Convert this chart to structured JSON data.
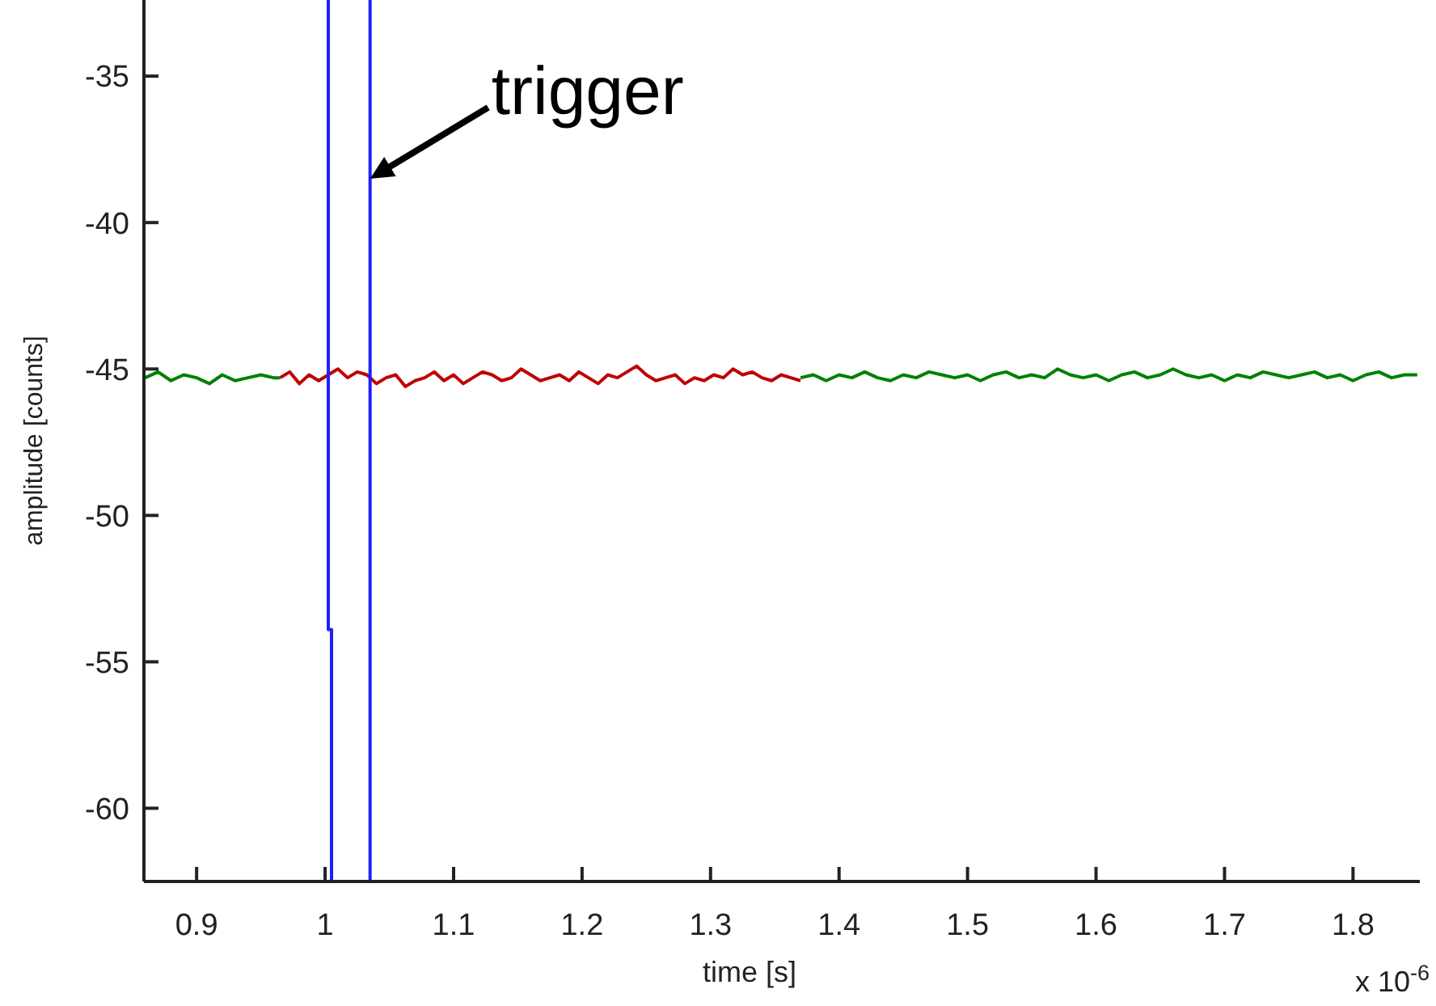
{
  "chart_data": {
    "type": "line",
    "xlabel": "time [s]",
    "ylabel": "amplitude [counts]",
    "xlim": [
      0.859,
      1.852
    ],
    "xticks": [
      0.9,
      1,
      1.1,
      1.2,
      1.3,
      1.4,
      1.5,
      1.6,
      1.7,
      1.8
    ],
    "ylim": [
      -62.5,
      -32.4
    ],
    "yticks": [
      -60,
      -55,
      -50,
      -45,
      -40,
      -35
    ],
    "grid": false,
    "marker": "none",
    "line_style": "solid",
    "annotations": [
      {
        "text": "trigger",
        "x": 1.035,
        "y": -38.5
      },
      "x 10$^{-6}$"
    ],
    "series": [
      {
        "color": "#008000",
        "x": [
          0.86,
          0.87,
          0.88,
          0.89,
          0.9,
          0.91,
          0.92,
          0.93,
          0.94,
          0.95,
          0.96,
          0.965
        ],
        "values": [
          -45.3,
          -45.1,
          -45.4,
          -45.2,
          -45.3,
          -45.5,
          -45.2,
          -45.4,
          -45.3,
          -45.2,
          -45.3,
          -45.3
        ]
      },
      {
        "color": "#008000",
        "x": [
          1.37,
          1.38,
          1.39,
          1.4,
          1.41,
          1.42,
          1.43,
          1.44,
          1.45,
          1.46,
          1.47,
          1.48,
          1.49,
          1.5,
          1.51,
          1.52,
          1.53,
          1.54,
          1.55,
          1.56,
          1.57,
          1.58,
          1.59,
          1.6,
          1.61,
          1.62,
          1.63,
          1.64,
          1.65,
          1.66,
          1.67,
          1.68,
          1.69,
          1.7,
          1.71,
          1.72,
          1.73,
          1.74,
          1.75,
          1.76,
          1.77,
          1.78,
          1.79,
          1.8,
          1.81,
          1.82,
          1.83,
          1.84,
          1.85
        ],
        "values": [
          -45.3,
          -45.2,
          -45.4,
          -45.2,
          -45.3,
          -45.1,
          -45.3,
          -45.4,
          -45.2,
          -45.3,
          -45.1,
          -45.2,
          -45.3,
          -45.2,
          -45.4,
          -45.2,
          -45.1,
          -45.3,
          -45.2,
          -45.3,
          -45.0,
          -45.2,
          -45.3,
          -45.2,
          -45.4,
          -45.2,
          -45.1,
          -45.3,
          -45.2,
          -45.0,
          -45.2,
          -45.3,
          -45.2,
          -45.4,
          -45.2,
          -45.3,
          -45.1,
          -45.2,
          -45.3,
          -45.2,
          -45.1,
          -45.3,
          -45.2,
          -45.4,
          -45.2,
          -45.1,
          -45.3,
          -45.2,
          -45.2
        ]
      },
      {
        "color": "#c00000",
        "x": [
          0.965,
          0.9725,
          0.98,
          0.9875,
          0.995,
          1.0025,
          1.01,
          1.0175,
          1.025,
          1.0325,
          1.04,
          1.0475,
          1.055,
          1.0625,
          1.07,
          1.0775,
          1.085,
          1.0925,
          1.1,
          1.1075,
          1.115,
          1.1225,
          1.13,
          1.1375,
          1.145,
          1.1525,
          1.16,
          1.1675,
          1.175,
          1.1825,
          1.19,
          1.1975,
          1.205,
          1.2125,
          1.22,
          1.2275,
          1.235,
          1.2425,
          1.25,
          1.2575,
          1.265,
          1.2725,
          1.28,
          1.2875,
          1.295,
          1.3025,
          1.31,
          1.3175,
          1.325,
          1.3325,
          1.34,
          1.3475,
          1.355,
          1.3625,
          1.37
        ],
        "values": [
          -45.3,
          -45.1,
          -45.5,
          -45.2,
          -45.4,
          -45.2,
          -45.0,
          -45.3,
          -45.1,
          -45.2,
          -45.5,
          -45.3,
          -45.2,
          -45.6,
          -45.4,
          -45.3,
          -45.1,
          -45.4,
          -45.2,
          -45.5,
          -45.3,
          -45.1,
          -45.2,
          -45.4,
          -45.3,
          -45.0,
          -45.2,
          -45.4,
          -45.3,
          -45.2,
          -45.4,
          -45.1,
          -45.3,
          -45.5,
          -45.2,
          -45.3,
          -45.1,
          -44.9,
          -45.2,
          -45.4,
          -45.3,
          -45.2,
          -45.5,
          -45.3,
          -45.4,
          -45.2,
          -45.3,
          -45.0,
          -45.2,
          -45.1,
          -45.3,
          -45.4,
          -45.2,
          -45.3,
          -45.4
        ]
      },
      {
        "color": "#1f1fff",
        "x": [
          1.0025,
          1.0025,
          1.005,
          1.005
        ],
        "values": [
          -32.4,
          -53.9,
          -53.9,
          -62.5
        ]
      },
      {
        "color": "#1f1fff",
        "x": [
          1.035,
          1.035
        ],
        "values": [
          -32.4,
          -62.5
        ]
      }
    ]
  }
}
